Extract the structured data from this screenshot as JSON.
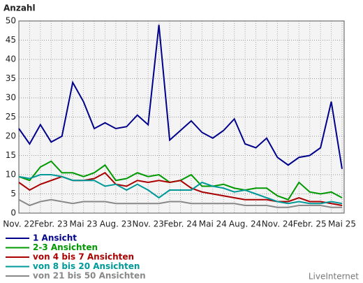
{
  "chart_data": {
    "type": "line",
    "title": "Anzahl",
    "watermark": "LiveInternet",
    "categories": [
      "Nov. 22",
      null,
      null,
      "Febr. 23",
      null,
      null,
      "Mai 23",
      null,
      null,
      "Aug. 23",
      null,
      null,
      "Nov. 23",
      null,
      null,
      "Febr. 24",
      null,
      null,
      "Mai 24",
      null,
      null,
      "Aug. 24",
      null,
      null,
      "Nov. 24",
      null,
      null,
      "Febr. 25",
      null,
      null,
      "Mai 25"
    ],
    "ylim": [
      0,
      50
    ],
    "yticks": [
      0,
      5,
      10,
      15,
      20,
      25,
      30,
      35,
      40,
      45,
      50
    ],
    "grid": true,
    "series": [
      {
        "name": "1 Ansicht",
        "color": "#00008b",
        "values": [
          22,
          18,
          23,
          18.5,
          20,
          34,
          29,
          22,
          23.5,
          22,
          22.5,
          25.5,
          23,
          49,
          19,
          21.5,
          24,
          21,
          19.5,
          21.5,
          24.5,
          18,
          17,
          19.5,
          14.5,
          12.5,
          14.5,
          15,
          17,
          29,
          11.5
        ]
      },
      {
        "name": "2-3 Ansichten",
        "color": "#009900",
        "values": [
          9.5,
          8.5,
          12,
          13.5,
          10.5,
          10.5,
          9.5,
          10.5,
          12.5,
          8.5,
          9,
          10.5,
          9.5,
          10,
          8,
          8.5,
          10,
          7,
          7,
          7.5,
          6.5,
          6,
          6.5,
          6.5,
          4.5,
          3.5,
          8,
          5.5,
          5,
          5.5,
          4
        ]
      },
      {
        "name": "von 4 bis 7 Ansichten",
        "color": "#aa0000",
        "values": [
          8,
          6,
          7.5,
          8.5,
          9.5,
          8.5,
          8.5,
          9,
          10.5,
          7.5,
          7,
          8.5,
          8,
          8.5,
          8,
          8.5,
          6.5,
          5.5,
          5,
          4.5,
          4,
          3.5,
          3.5,
          3.5,
          3,
          3,
          4,
          3,
          3,
          2.5,
          2
        ]
      },
      {
        "name": "von 8 bis 20 Ansichten",
        "color": "#009999",
        "values": [
          9.5,
          9,
          10,
          10,
          9.5,
          8.5,
          8.5,
          8.5,
          7,
          7.5,
          6,
          7.5,
          6,
          4,
          6,
          6,
          6,
          8,
          7,
          6.5,
          5.5,
          6,
          5,
          4,
          3,
          2.5,
          3,
          2.5,
          2.5,
          3,
          2.5
        ]
      },
      {
        "name": "von 21 bis 50 Ansichten",
        "color": "#888888",
        "values": [
          3.5,
          2,
          3,
          3.5,
          3,
          2.5,
          3,
          3,
          3,
          2.5,
          2.5,
          2.5,
          2.5,
          2.5,
          3,
          3,
          2.5,
          2.5,
          2.5,
          2.5,
          2.5,
          2,
          2,
          2,
          1.5,
          1.5,
          2,
          2,
          2,
          1.5,
          1.5
        ]
      }
    ]
  }
}
